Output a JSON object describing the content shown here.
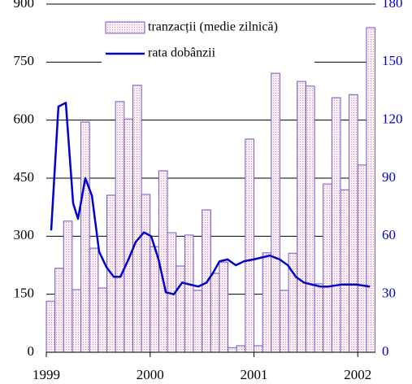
{
  "chart_data": {
    "type": "bar-line",
    "xlim": [
      1999,
      2002.17
    ],
    "xticks": [
      1999,
      2000,
      2001,
      2002
    ],
    "ylim": [
      0,
      900
    ],
    "yticks": [
      0,
      150,
      300,
      450,
      600,
      750,
      900
    ],
    "y2lim": [
      0,
      180
    ],
    "y2ticks": [
      0,
      30,
      60,
      90,
      120,
      150,
      180
    ],
    "grid": true,
    "legend": "top",
    "series": [
      {
        "name": "tranzacții (medie zilnică)",
        "type": "bar",
        "color": "#6a5acd",
        "fill": "#f3d6e4",
        "x": [
          1999.042,
          1999.125,
          1999.208,
          1999.292,
          1999.375,
          1999.458,
          1999.542,
          1999.625,
          1999.708,
          1999.792,
          1999.875,
          1999.958,
          2000.042,
          2000.125,
          2000.208,
          2000.292,
          2000.375,
          2000.458,
          2000.542,
          2000.625,
          2000.708,
          2000.792,
          2000.875,
          2000.958,
          2001.042,
          2001.125,
          2001.208,
          2001.292,
          2001.375,
          2001.458,
          2001.542,
          2001.625,
          2001.708,
          2001.792,
          2001.875,
          2001.958,
          2002.042,
          2002.125
        ],
        "values": [
          132,
          217,
          339,
          162,
          595,
          269,
          166,
          406,
          648,
          603,
          690,
          408,
          273,
          469,
          309,
          223,
          303,
          160,
          368,
          204,
          233,
          12,
          17,
          551,
          17,
          257,
          721,
          160,
          256,
          700,
          688,
          177,
          435,
          658,
          420,
          666,
          484,
          839
        ]
      },
      {
        "name": "rata dobânzii",
        "type": "line",
        "axis": "y2",
        "color": "#0000cc",
        "x": [
          1999.047,
          1999.117,
          1999.188,
          1999.258,
          1999.305,
          1999.376,
          1999.439,
          1999.509,
          1999.579,
          1999.65,
          1999.713,
          1999.791,
          1999.861,
          1999.94,
          2000.01,
          2000.081,
          2000.151,
          2000.229,
          2000.308,
          2000.386,
          2000.464,
          2000.543,
          2000.605,
          2000.668,
          2000.746,
          2000.825,
          2000.903,
          2000.997,
          2001.075,
          2001.153,
          2001.247,
          2001.326,
          2001.404,
          2001.482,
          2001.561,
          2001.639,
          2001.717,
          2001.843,
          2001.984,
          2002.117
        ],
        "values": [
          63,
          127,
          129,
          77,
          69,
          90,
          81,
          52,
          44,
          39,
          39,
          48,
          57,
          62,
          60,
          48,
          31,
          30,
          36,
          35,
          34,
          36,
          41,
          47,
          48,
          45,
          47,
          48,
          49,
          50,
          48,
          45,
          39,
          36,
          35,
          34,
          34,
          35,
          35,
          34
        ]
      }
    ]
  }
}
